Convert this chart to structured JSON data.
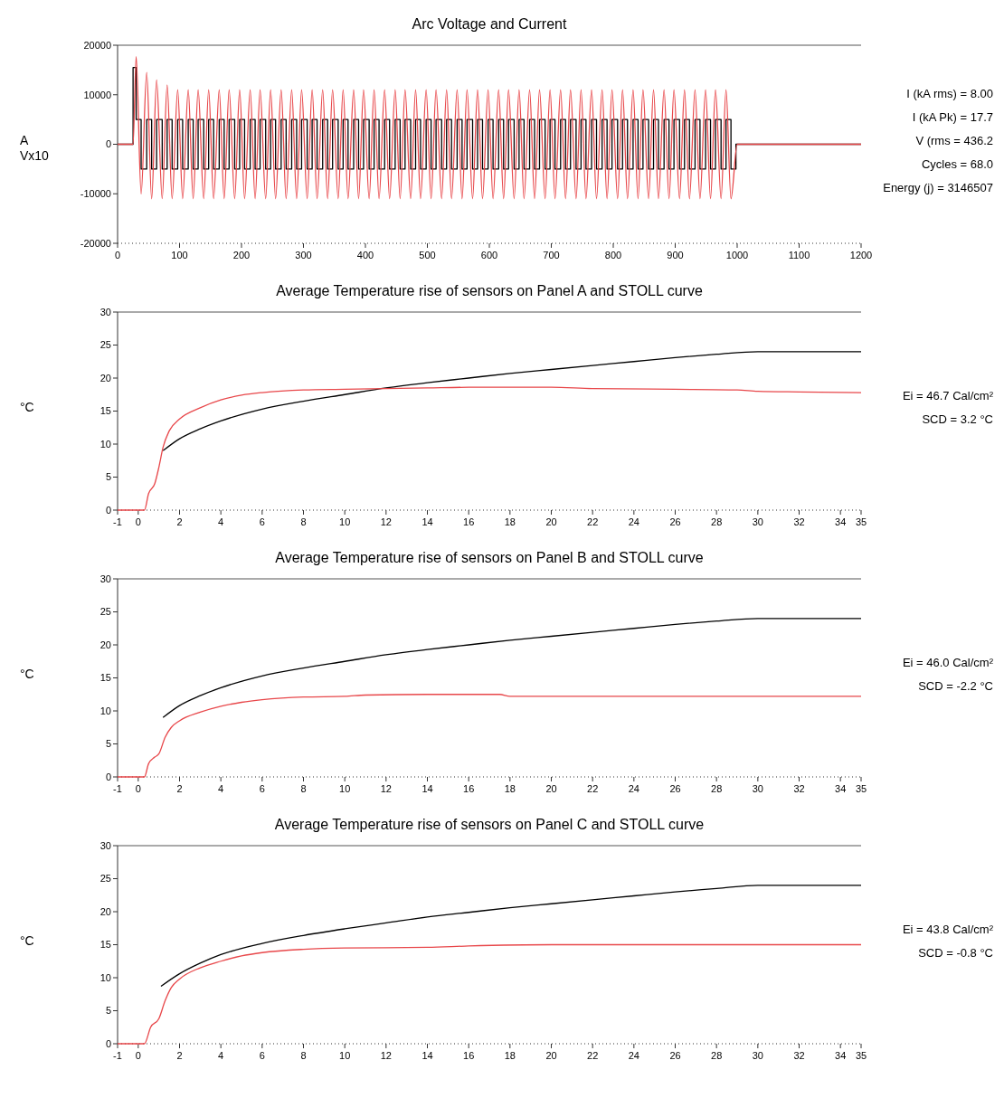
{
  "chart_data": [
    {
      "type": "line",
      "title": "Arc Voltage and Current",
      "ylabel": "A Vx10",
      "xlim": [
        0,
        1200
      ],
      "xticks": [
        0,
        100,
        200,
        300,
        400,
        500,
        600,
        700,
        800,
        900,
        1000,
        1100,
        1200
      ],
      "ylim": [
        -20000,
        20000
      ],
      "yticks": [
        -20000,
        -10000,
        0,
        10000,
        20000
      ],
      "annotations": [
        "I (kA rms) = 8.00",
        "I (kA Pk) = 17.7",
        "V (rms = 436.2",
        "Cycles =  68.0",
        "Energy (j) = 3146507"
      ],
      "series": [
        {
          "type": "step",
          "color": "#000000",
          "x": [
            0,
            25,
            30,
            38,
            47,
            55,
            63,
            72,
            80,
            88,
            97,
            105,
            114,
            122,
            130,
            139,
            147,
            155,
            164,
            172,
            180,
            189,
            197,
            205,
            214,
            222,
            230,
            239,
            247,
            255,
            264,
            272,
            281,
            289,
            297,
            306,
            314,
            322,
            331,
            339,
            347,
            356,
            364,
            372,
            381,
            389,
            397,
            406,
            414,
            422,
            431,
            439,
            448,
            456,
            464,
            473,
            481,
            489,
            498,
            506,
            514,
            523,
            531,
            539,
            548,
            556,
            564,
            573,
            581,
            589,
            598,
            606,
            615,
            623,
            631,
            640,
            648,
            656,
            665,
            673,
            681,
            690,
            698,
            706,
            715,
            723,
            731,
            740,
            748,
            756,
            765,
            773,
            782,
            790,
            798,
            807,
            815,
            823,
            832,
            840,
            848,
            857,
            865,
            873,
            882,
            890,
            898,
            907,
            915,
            923,
            932,
            940,
            949,
            957,
            965,
            974,
            982,
            990,
            998,
            1200
          ],
          "values": [
            0,
            15500,
            5000,
            -5000,
            5000,
            -5000,
            5000,
            -5000,
            5000,
            -5000,
            5000,
            -5000,
            5000,
            -5000,
            5000,
            -5000,
            5000,
            -5000,
            5000,
            -5000,
            5000,
            -5000,
            5000,
            -5000,
            5000,
            -5000,
            5000,
            -5000,
            5000,
            -5000,
            5000,
            -5000,
            5000,
            -5000,
            5000,
            -5000,
            5000,
            -5000,
            5000,
            -5000,
            5000,
            -5000,
            5000,
            -5000,
            5000,
            -5000,
            5000,
            -5000,
            5000,
            -5000,
            5000,
            -5000,
            5000,
            -5000,
            5000,
            -5000,
            5000,
            -5000,
            5000,
            -5000,
            5000,
            -5000,
            5000,
            -5000,
            5000,
            -5000,
            5000,
            -5000,
            5000,
            -5000,
            5000,
            -5000,
            5000,
            -5000,
            5000,
            -5000,
            5000,
            -5000,
            5000,
            -5000,
            5000,
            -5000,
            5000,
            -5000,
            5000,
            -5000,
            5000,
            -5000,
            5000,
            -5000,
            5000,
            -5000,
            5000,
            -5000,
            5000,
            -5000,
            5000,
            -5000,
            5000,
            -5000,
            5000,
            -5000,
            5000,
            -5000,
            5000,
            -5000,
            5000,
            -5000,
            5000,
            -5000,
            5000,
            -5000,
            5000,
            -5000,
            5000,
            -5000,
            5000,
            -5000,
            0,
            0
          ]
        },
        {
          "type": "line",
          "color": "#e8474a",
          "x": [
            0,
            25,
            30,
            38,
            47,
            55,
            63,
            72,
            80,
            88,
            97,
            105,
            114,
            122,
            130,
            139,
            147,
            155,
            164,
            172,
            180,
            189,
            197,
            205,
            214,
            222,
            230,
            239,
            247,
            255,
            264,
            272,
            281,
            289,
            297,
            306,
            314,
            322,
            331,
            339,
            347,
            356,
            364,
            372,
            381,
            389,
            397,
            406,
            414,
            422,
            431,
            439,
            448,
            456,
            464,
            473,
            481,
            489,
            498,
            506,
            514,
            523,
            531,
            539,
            548,
            556,
            564,
            573,
            581,
            589,
            598,
            606,
            615,
            623,
            631,
            640,
            648,
            656,
            665,
            673,
            681,
            690,
            698,
            706,
            715,
            723,
            731,
            740,
            748,
            756,
            765,
            773,
            782,
            790,
            798,
            807,
            815,
            823,
            832,
            840,
            848,
            857,
            865,
            873,
            882,
            890,
            898,
            907,
            915,
            923,
            932,
            940,
            949,
            957,
            965,
            974,
            982,
            990,
            1000,
            1200
          ],
          "values": [
            0,
            0,
            17700,
            -10000,
            14500,
            -11000,
            13000,
            -11000,
            12000,
            -11000,
            11000,
            -11000,
            11000,
            -11000,
            11000,
            -11000,
            11000,
            -11000,
            11000,
            -11000,
            11000,
            -11000,
            11000,
            -11000,
            11000,
            -11000,
            11000,
            -11000,
            11000,
            -11000,
            11000,
            -11000,
            11000,
            -11000,
            11000,
            -11000,
            11000,
            -11000,
            11000,
            -11000,
            11000,
            -11000,
            11000,
            -11000,
            11000,
            -11000,
            11000,
            -11000,
            11000,
            -11000,
            11000,
            -11000,
            11000,
            -11000,
            11000,
            -11000,
            11000,
            -11000,
            11000,
            -11000,
            11000,
            -11000,
            11000,
            -11000,
            11000,
            -11000,
            11000,
            -11000,
            11000,
            -11000,
            11000,
            -11000,
            11000,
            -11000,
            11000,
            -11000,
            11000,
            -11000,
            11000,
            -11000,
            11000,
            -11000,
            11000,
            -11000,
            11000,
            -11000,
            11000,
            -11000,
            11000,
            -11000,
            11000,
            -11000,
            11000,
            -11000,
            11000,
            -11000,
            11000,
            -11000,
            11000,
            -11000,
            11000,
            -11000,
            11000,
            -11000,
            11000,
            -11000,
            11000,
            -11000,
            11000,
            -11000,
            11000,
            -11000,
            11000,
            -11000,
            11000,
            -11000,
            11000,
            -11000,
            0,
            0
          ]
        }
      ]
    },
    {
      "type": "line",
      "title": "Average Temperature rise of sensors on Panel A and STOLL curve",
      "ylabel": "°C",
      "xlim": [
        -1,
        35
      ],
      "xticks": [
        -1,
        0,
        2,
        4,
        6,
        8,
        10,
        12,
        14,
        16,
        18,
        20,
        22,
        24,
        26,
        28,
        30,
        32,
        34,
        35
      ],
      "ylim": [
        0,
        30
      ],
      "yticks": [
        0,
        5,
        10,
        15,
        20,
        25,
        30
      ],
      "annotations": [
        "Ei = 46.7 Cal/cm²",
        "SCD = 3.2 °C"
      ],
      "series": [
        {
          "color": "#000000",
          "x": [
            1.2,
            2,
            3,
            4,
            6,
            8,
            10,
            12,
            14,
            16,
            18,
            20,
            22,
            24,
            26,
            28,
            30,
            35
          ],
          "values": [
            9,
            10.8,
            12.3,
            13.5,
            15.3,
            16.5,
            17.5,
            18.5,
            19.3,
            20,
            20.7,
            21.3,
            21.9,
            22.5,
            23.1,
            23.6,
            24,
            24
          ]
        },
        {
          "color": "#e8474a",
          "x": [
            -1,
            0.3,
            0.5,
            0.8,
            1,
            1.2,
            1.5,
            2,
            3,
            4,
            5,
            6,
            8,
            10,
            12,
            14,
            16,
            20,
            22,
            26,
            29,
            30,
            32,
            35
          ],
          "values": [
            0,
            0,
            2.5,
            4,
            6.5,
            9.5,
            12,
            13.8,
            15.5,
            16.7,
            17.4,
            17.8,
            18.2,
            18.3,
            18.4,
            18.5,
            18.6,
            18.6,
            18.4,
            18.3,
            18.2,
            18,
            17.9,
            17.8
          ]
        }
      ]
    },
    {
      "type": "line",
      "title": "Average Temperature rise of sensors on Panel B and STOLL curve",
      "ylabel": "°C",
      "xlim": [
        -1,
        35
      ],
      "xticks": [
        -1,
        0,
        2,
        4,
        6,
        8,
        10,
        12,
        14,
        16,
        18,
        20,
        22,
        24,
        26,
        28,
        30,
        32,
        34,
        35
      ],
      "ylim": [
        0,
        30
      ],
      "yticks": [
        0,
        5,
        10,
        15,
        20,
        25,
        30
      ],
      "annotations": [
        "Ei = 46.0 Cal/cm²",
        "SCD = -2.2 °C"
      ],
      "series": [
        {
          "color": "#000000",
          "x": [
            1.2,
            2,
            3,
            4,
            6,
            8,
            10,
            12,
            14,
            16,
            18,
            20,
            22,
            24,
            26,
            28,
            30,
            35
          ],
          "values": [
            9,
            10.8,
            12.3,
            13.5,
            15.3,
            16.5,
            17.5,
            18.5,
            19.3,
            20,
            20.7,
            21.3,
            21.9,
            22.5,
            23.1,
            23.6,
            24,
            24
          ]
        },
        {
          "color": "#e8474a",
          "x": [
            -1,
            0.3,
            0.5,
            0.8,
            1,
            1.3,
            1.6,
            2,
            3,
            4,
            5,
            6,
            8,
            10,
            11,
            14,
            17.5,
            18,
            25,
            35
          ],
          "values": [
            0,
            0,
            2,
            3,
            3.5,
            6,
            7.5,
            8.5,
            9.8,
            10.7,
            11.3,
            11.7,
            12.1,
            12.2,
            12.4,
            12.5,
            12.5,
            12.2,
            12.2,
            12.2
          ]
        }
      ]
    },
    {
      "type": "line",
      "title": "Average Temperature rise of sensors on Panel C and STOLL curve",
      "ylabel": "°C",
      "xlim": [
        -1,
        35
      ],
      "xticks": [
        -1,
        0,
        2,
        4,
        6,
        8,
        10,
        12,
        14,
        16,
        18,
        20,
        22,
        24,
        26,
        28,
        30,
        32,
        34,
        35
      ],
      "ylim": [
        0,
        30
      ],
      "yticks": [
        0,
        5,
        10,
        15,
        20,
        25,
        30
      ],
      "annotations": [
        "Ei = 43.8 Cal/cm²",
        "SCD = -0.8 °C"
      ],
      "series": [
        {
          "color": "#000000",
          "x": [
            1.1,
            2,
            3,
            4,
            6,
            8,
            10,
            12,
            14,
            16,
            18,
            20,
            22,
            24,
            26,
            28,
            30,
            35
          ],
          "values": [
            8.7,
            10.6,
            12.2,
            13.5,
            15.2,
            16.4,
            17.4,
            18.3,
            19.2,
            19.9,
            20.6,
            21.2,
            21.8,
            22.4,
            23,
            23.5,
            24,
            24
          ]
        },
        {
          "color": "#e8474a",
          "x": [
            -1,
            0.3,
            0.6,
            1,
            1.3,
            1.6,
            2,
            3,
            4,
            5,
            6,
            8,
            10,
            14,
            16,
            20,
            35
          ],
          "values": [
            0,
            0,
            2.5,
            3.8,
            6.5,
            8.5,
            9.8,
            11.5,
            12.5,
            13.3,
            13.8,
            14.3,
            14.5,
            14.6,
            14.8,
            15,
            15
          ]
        }
      ]
    }
  ]
}
